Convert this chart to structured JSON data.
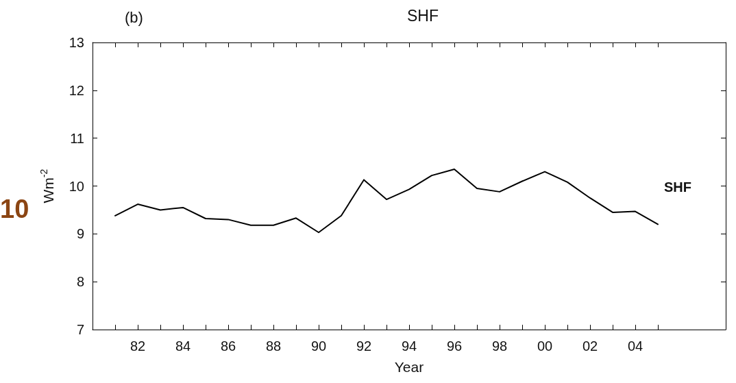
{
  "chart_data": {
    "type": "line",
    "title": "SHF",
    "xlabel": "Year",
    "ylabel": "Wm$^{-2}$",
    "annotations": [
      "(b)",
      "10"
    ],
    "x": [
      1981,
      1982,
      1983,
      1984,
      1985,
      1986,
      1987,
      1988,
      1989,
      1990,
      1991,
      1992,
      1993,
      1994,
      1995,
      1996,
      1997,
      1998,
      1999,
      2000,
      2001,
      2002,
      2003,
      2004,
      2005
    ],
    "series": [
      {
        "name": "SHF",
        "color": "#000000",
        "values": [
          9.38,
          9.62,
          9.5,
          9.55,
          9.32,
          9.3,
          9.18,
          9.18,
          9.33,
          9.03,
          9.38,
          10.13,
          9.72,
          9.93,
          10.22,
          10.35,
          9.95,
          9.88,
          10.1,
          10.3,
          10.08,
          9.75,
          9.45,
          9.47,
          9.2
        ]
      }
    ],
    "xlim": [
      1980,
      2008
    ],
    "xticks": [
      {
        "value": 1981,
        "label": null
      },
      {
        "value": 1982,
        "label": "82"
      },
      {
        "value": 1983,
        "label": null
      },
      {
        "value": 1984,
        "label": "84"
      },
      {
        "value": 1985,
        "label": null
      },
      {
        "value": 1986,
        "label": "86"
      },
      {
        "value": 1987,
        "label": null
      },
      {
        "value": 1988,
        "label": "88"
      },
      {
        "value": 1989,
        "label": null
      },
      {
        "value": 1990,
        "label": "90"
      },
      {
        "value": 1991,
        "label": null
      },
      {
        "value": 1992,
        "label": "92"
      },
      {
        "value": 1993,
        "label": null
      },
      {
        "value": 1994,
        "label": "94"
      },
      {
        "value": 1995,
        "label": null
      },
      {
        "value": 1996,
        "label": "96"
      },
      {
        "value": 1997,
        "label": null
      },
      {
        "value": 1998,
        "label": "98"
      },
      {
        "value": 1999,
        "label": null
      },
      {
        "value": 2000,
        "label": "00"
      },
      {
        "value": 2001,
        "label": null
      },
      {
        "value": 2002,
        "label": "02"
      },
      {
        "value": 2003,
        "label": null
      },
      {
        "value": 2004,
        "label": "04"
      },
      {
        "value": 2005,
        "label": null
      }
    ],
    "ylim": [
      7,
      13
    ],
    "yticks": [
      7,
      8,
      9,
      10,
      11,
      12,
      13
    ],
    "grid": false,
    "legend": "right",
    "marker": "none",
    "line_style": "solid"
  }
}
